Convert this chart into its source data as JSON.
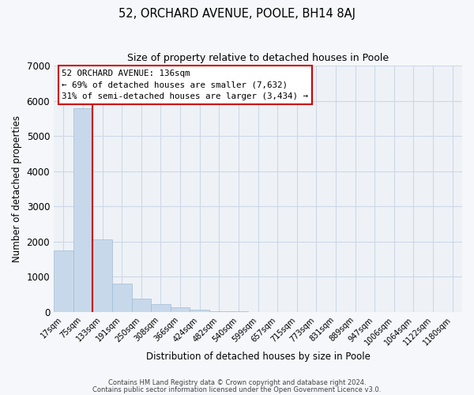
{
  "title_main": "52, ORCHARD AVENUE, POOLE, BH14 8AJ",
  "title_sub": "Size of property relative to detached houses in Poole",
  "xlabel": "Distribution of detached houses by size in Poole",
  "ylabel": "Number of detached properties",
  "bar_labels": [
    "17sqm",
    "75sqm",
    "133sqm",
    "191sqm",
    "250sqm",
    "308sqm",
    "366sqm",
    "424sqm",
    "482sqm",
    "540sqm",
    "599sqm",
    "657sqm",
    "715sqm",
    "773sqm",
    "831sqm",
    "889sqm",
    "947sqm",
    "1006sqm",
    "1064sqm",
    "1122sqm",
    "1180sqm"
  ],
  "bar_values": [
    1750,
    5780,
    2060,
    800,
    370,
    230,
    120,
    70,
    30,
    10,
    5,
    0,
    0,
    0,
    0,
    0,
    0,
    0,
    0,
    0,
    0
  ],
  "bar_color": "#c8d8eb",
  "bar_edge_color": "#a0bcd4",
  "vline_x_index": 1.5,
  "vline_color": "#cc0000",
  "annotation_line1": "52 ORCHARD AVENUE: 136sqm",
  "annotation_line2": "← 69% of detached houses are smaller (7,632)",
  "annotation_line3": "31% of semi-detached houses are larger (3,434) →",
  "annotation_box_edge": "#cc0000",
  "ylim": [
    0,
    7000
  ],
  "yticks": [
    0,
    1000,
    2000,
    3000,
    4000,
    5000,
    6000,
    7000
  ],
  "grid_color": "#ccd8e6",
  "bg_color": "#eef2f7",
  "fig_bg_color": "#f5f7fa",
  "footer_line1": "Contains HM Land Registry data © Crown copyright and database right 2024.",
  "footer_line2": "Contains public sector information licensed under the Open Government Licence v3.0."
}
